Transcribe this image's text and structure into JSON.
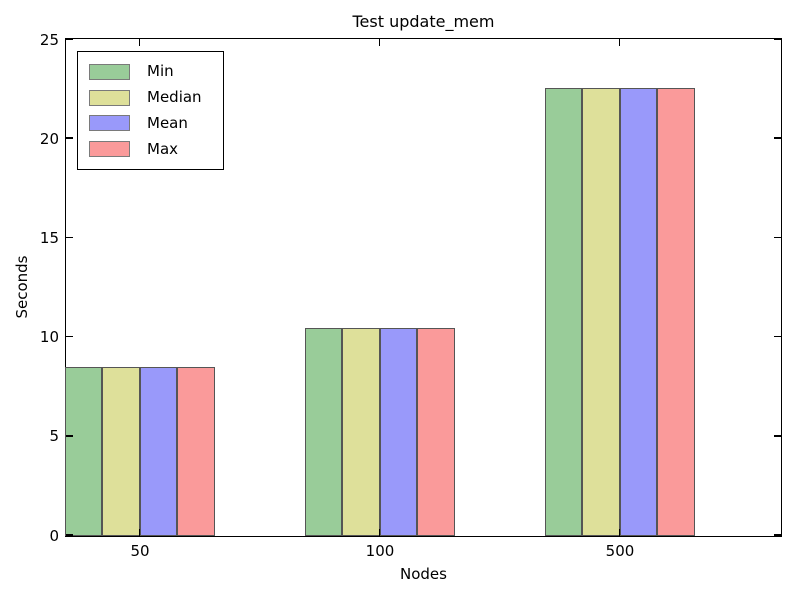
{
  "chart_data": {
    "type": "bar",
    "title": "Test update_mem",
    "xlabel": "Nodes",
    "ylabel": "Seconds",
    "categories": [
      "50",
      "100",
      "500"
    ],
    "series": [
      {
        "name": "Min",
        "color": "#99cc99",
        "edge": "#555555",
        "values": [
          8.5,
          10.5,
          22.6
        ]
      },
      {
        "name": "Median",
        "color": "#dee09a",
        "edge": "#555555",
        "values": [
          8.5,
          10.5,
          22.6
        ]
      },
      {
        "name": "Mean",
        "color": "#9999fa",
        "edge": "#555555",
        "values": [
          8.5,
          10.5,
          22.6
        ]
      },
      {
        "name": "Max",
        "color": "#fa9a9a",
        "edge": "#555555",
        "values": [
          8.5,
          10.5,
          22.6
        ]
      }
    ],
    "yticks": [
      0,
      5,
      10,
      15,
      20,
      25
    ],
    "ylim": [
      0,
      25
    ],
    "legend_position": "upper-left",
    "grid": false,
    "spine_color": "#000000",
    "background": "#ffffff"
  }
}
